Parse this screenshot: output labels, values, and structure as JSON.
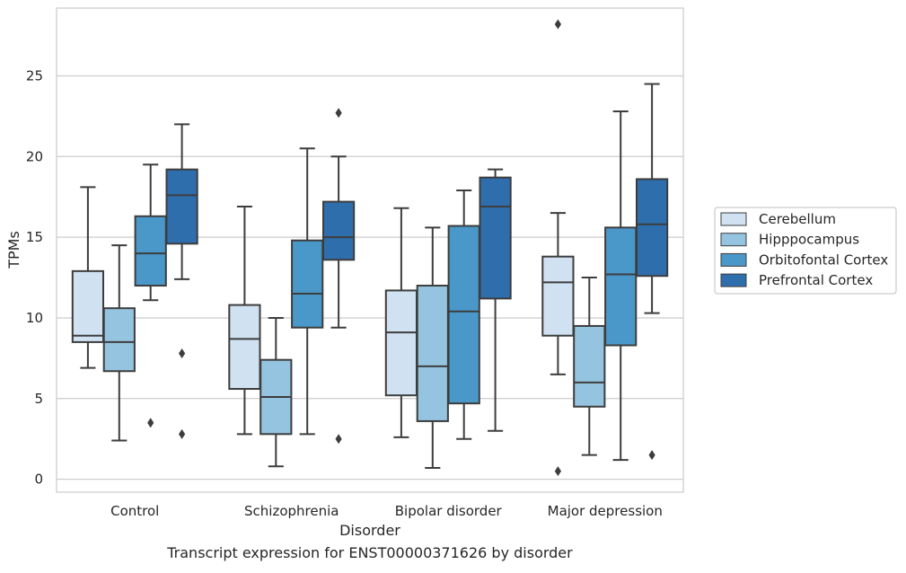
{
  "chart_data": {
    "type": "box",
    "caption": "Transcript expression for ENST00000371626 by disorder",
    "xlabel": "Disorder",
    "ylabel": "TPMs",
    "ylim": [
      -0.8,
      29.2
    ],
    "yticks": [
      0,
      5,
      10,
      15,
      20,
      25
    ],
    "grid": "horizontal",
    "legend_position": "right",
    "categories": [
      "Control",
      "Schizophrenia",
      "Bipolar disorder",
      "Major depression"
    ],
    "series": [
      {
        "name": "Cerebellum",
        "color": "#d0e1f2",
        "boxes": [
          {
            "whisker_low": 6.9,
            "q1": 8.5,
            "median": 8.9,
            "q3": 12.9,
            "whisker_high": 18.1,
            "outliers": []
          },
          {
            "whisker_low": 2.8,
            "q1": 5.6,
            "median": 8.7,
            "q3": 10.8,
            "whisker_high": 16.9,
            "outliers": []
          },
          {
            "whisker_low": 2.6,
            "q1": 5.2,
            "median": 9.1,
            "q3": 11.7,
            "whisker_high": 16.8,
            "outliers": []
          },
          {
            "whisker_low": 6.5,
            "q1": 8.9,
            "median": 12.2,
            "q3": 13.8,
            "whisker_high": 16.5,
            "outliers": [
              0.5,
              28.2
            ]
          }
        ]
      },
      {
        "name": "Hipppocampus",
        "color": "#94c4df",
        "boxes": [
          {
            "whisker_low": 2.4,
            "q1": 6.7,
            "median": 8.5,
            "q3": 10.6,
            "whisker_high": 14.5,
            "outliers": []
          },
          {
            "whisker_low": 0.8,
            "q1": 2.8,
            "median": 5.1,
            "q3": 7.4,
            "whisker_high": 10.0,
            "outliers": []
          },
          {
            "whisker_low": 0.7,
            "q1": 3.6,
            "median": 7.0,
            "q3": 12.0,
            "whisker_high": 15.6,
            "outliers": []
          },
          {
            "whisker_low": 1.5,
            "q1": 4.5,
            "median": 6.0,
            "q3": 9.5,
            "whisker_high": 12.5,
            "outliers": []
          }
        ]
      },
      {
        "name": "Orbitofontal Cortex",
        "color": "#4a98c9",
        "boxes": [
          {
            "whisker_low": 11.1,
            "q1": 12.0,
            "median": 14.0,
            "q3": 16.3,
            "whisker_high": 19.5,
            "outliers": [
              3.5
            ]
          },
          {
            "whisker_low": 2.8,
            "q1": 9.4,
            "median": 11.5,
            "q3": 14.8,
            "whisker_high": 20.5,
            "outliers": []
          },
          {
            "whisker_low": 2.5,
            "q1": 4.7,
            "median": 10.4,
            "q3": 15.7,
            "whisker_high": 17.9,
            "outliers": []
          },
          {
            "whisker_low": 1.2,
            "q1": 8.3,
            "median": 12.7,
            "q3": 15.6,
            "whisker_high": 22.8,
            "outliers": []
          }
        ]
      },
      {
        "name": "Prefrontal Cortex",
        "color": "#2e6ead",
        "boxes": [
          {
            "whisker_low": 12.4,
            "q1": 14.6,
            "median": 17.6,
            "q3": 19.2,
            "whisker_high": 22.0,
            "outliers": [
              2.8,
              7.8
            ]
          },
          {
            "whisker_low": 9.4,
            "q1": 13.6,
            "median": 15.0,
            "q3": 17.2,
            "whisker_high": 20.0,
            "outliers": [
              2.5,
              22.7
            ]
          },
          {
            "whisker_low": 3.0,
            "q1": 11.2,
            "median": 16.9,
            "q3": 18.7,
            "whisker_high": 19.2,
            "outliers": []
          },
          {
            "whisker_low": 10.3,
            "q1": 12.6,
            "median": 15.8,
            "q3": 18.6,
            "whisker_high": 24.5,
            "outliers": [
              1.5
            ]
          }
        ]
      }
    ]
  }
}
